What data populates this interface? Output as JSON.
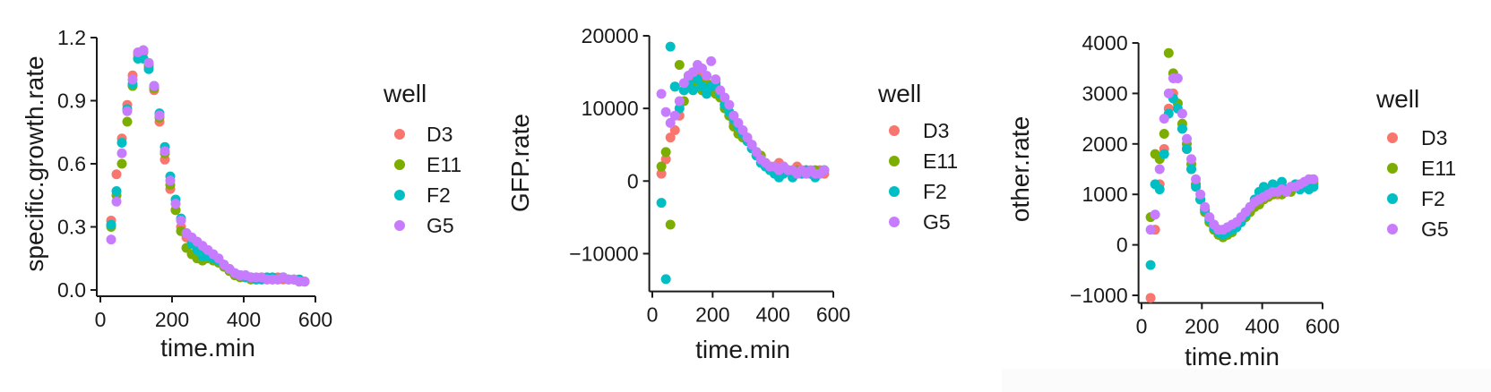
{
  "legend": {
    "title": "well",
    "entries": [
      {
        "label": "D3",
        "color": "#F8766D"
      },
      {
        "label": "E11",
        "color": "#7CAE00"
      },
      {
        "label": "F2",
        "color": "#00BFC4"
      },
      {
        "label": "G5",
        "color": "#C77CFF"
      }
    ]
  },
  "chart_data": [
    {
      "type": "scatter",
      "xlabel": "time.min",
      "ylabel": "specific.growth.rate",
      "xlim": [
        0,
        600
      ],
      "ylim": [
        0.0,
        1.2
      ],
      "xticks": [
        0,
        200,
        400,
        600
      ],
      "xtick_labels": [
        "0",
        "200",
        "400",
        "600"
      ],
      "yticks": [
        0.0,
        0.3,
        0.6,
        0.9,
        1.2
      ],
      "ytick_labels": [
        "0.0",
        "0.3",
        "0.6",
        "0.9",
        "1.2"
      ],
      "grid": false,
      "legend_position": "right",
      "series": [
        {
          "name": "D3",
          "x": [
            30,
            45,
            60,
            75,
            90,
            105,
            120,
            135,
            150,
            165,
            180,
            195,
            210,
            225,
            240,
            255,
            270,
            285,
            300,
            315,
            330,
            345,
            360,
            375,
            390,
            405,
            420,
            435,
            450,
            465,
            480,
            495,
            510,
            525,
            540,
            555,
            570
          ],
          "y": [
            0.33,
            0.55,
            0.72,
            0.88,
            1.02,
            1.12,
            1.13,
            1.06,
            0.95,
            0.8,
            0.62,
            0.48,
            0.38,
            0.3,
            0.25,
            0.22,
            0.2,
            0.18,
            0.17,
            0.15,
            0.14,
            0.12,
            0.1,
            0.08,
            0.07,
            0.06,
            0.06,
            0.05,
            0.06,
            0.05,
            0.05,
            0.06,
            0.05,
            0.05,
            0.05,
            0.04,
            0.04
          ]
        },
        {
          "name": "E11",
          "x": [
            30,
            45,
            60,
            75,
            90,
            105,
            120,
            135,
            150,
            165,
            180,
            195,
            210,
            225,
            240,
            255,
            270,
            285,
            300,
            315,
            330,
            345,
            360,
            375,
            390,
            405,
            420,
            435,
            450,
            465,
            480,
            495,
            510,
            525,
            540,
            555,
            570
          ],
          "y": [
            0.3,
            0.45,
            0.6,
            0.8,
            0.97,
            1.1,
            1.14,
            1.07,
            0.96,
            0.82,
            0.65,
            0.5,
            0.38,
            0.28,
            0.2,
            0.17,
            0.15,
            0.14,
            0.15,
            0.14,
            0.13,
            0.11,
            0.09,
            0.07,
            0.06,
            0.06,
            0.05,
            0.05,
            0.05,
            0.05,
            0.05,
            0.05,
            0.06,
            0.05,
            0.05,
            0.04,
            0.04
          ]
        },
        {
          "name": "F2",
          "x": [
            30,
            45,
            60,
            75,
            90,
            105,
            120,
            135,
            150,
            165,
            180,
            195,
            210,
            225,
            240,
            255,
            270,
            285,
            300,
            315,
            330,
            345,
            360,
            375,
            390,
            405,
            420,
            435,
            450,
            465,
            480,
            495,
            510,
            525,
            540,
            555,
            570
          ],
          "y": [
            0.31,
            0.47,
            0.7,
            0.86,
            0.98,
            1.1,
            1.1,
            1.05,
            0.97,
            0.84,
            0.68,
            0.54,
            0.43,
            0.34,
            0.27,
            0.22,
            0.19,
            0.16,
            0.16,
            0.15,
            0.14,
            0.12,
            0.1,
            0.08,
            0.07,
            0.06,
            0.06,
            0.05,
            0.05,
            0.06,
            0.06,
            0.05,
            0.06,
            0.05,
            0.05,
            0.05,
            0.04
          ]
        },
        {
          "name": "G5",
          "x": [
            30,
            45,
            60,
            75,
            90,
            105,
            120,
            135,
            150,
            165,
            180,
            195,
            210,
            225,
            240,
            255,
            270,
            285,
            300,
            315,
            330,
            345,
            360,
            375,
            390,
            405,
            420,
            435,
            450,
            465,
            480,
            495,
            510,
            525,
            540,
            555,
            570
          ],
          "y": [
            0.24,
            0.42,
            0.65,
            0.85,
            1.0,
            1.13,
            1.14,
            1.08,
            0.97,
            0.83,
            0.66,
            0.52,
            0.41,
            0.33,
            0.27,
            0.25,
            0.23,
            0.21,
            0.19,
            0.17,
            0.15,
            0.12,
            0.1,
            0.08,
            0.07,
            0.07,
            0.06,
            0.06,
            0.06,
            0.05,
            0.05,
            0.05,
            0.06,
            0.05,
            0.05,
            0.04,
            0.04
          ]
        }
      ]
    },
    {
      "type": "scatter",
      "xlabel": "time.min",
      "ylabel": "GFP.rate",
      "xlim": [
        0,
        600
      ],
      "ylim": [
        -15000,
        20000
      ],
      "xticks": [
        0,
        200,
        400,
        600
      ],
      "xtick_labels": [
        "0",
        "200",
        "400",
        "600"
      ],
      "yticks": [
        -10000,
        0,
        10000,
        20000
      ],
      "ytick_labels": [
        "−10000",
        "0",
        "10000",
        "20000"
      ],
      "grid": false,
      "legend_position": "right",
      "series": [
        {
          "name": "D3",
          "x": [
            30,
            45,
            60,
            75,
            90,
            105,
            120,
            135,
            150,
            165,
            180,
            195,
            210,
            225,
            240,
            255,
            270,
            285,
            300,
            315,
            330,
            345,
            360,
            375,
            390,
            405,
            420,
            435,
            450,
            465,
            480,
            495,
            510,
            525,
            540,
            555,
            570
          ],
          "y": [
            1000,
            3000,
            6000,
            7000,
            9000,
            12500,
            14000,
            13500,
            14500,
            14000,
            13000,
            12500,
            13000,
            12000,
            10500,
            9000,
            8000,
            7000,
            6500,
            5500,
            5000,
            4000,
            3000,
            2500,
            2000,
            2000,
            2500,
            2000,
            1500,
            1500,
            2000,
            1500,
            1000,
            1000,
            1000,
            1500,
            1000
          ]
        },
        {
          "name": "E11",
          "x": [
            30,
            45,
            60,
            75,
            90,
            105,
            120,
            135,
            150,
            165,
            180,
            195,
            210,
            225,
            240,
            255,
            270,
            285,
            300,
            315,
            330,
            345,
            360,
            375,
            390,
            405,
            420,
            435,
            450,
            465,
            480,
            495,
            510,
            525,
            540,
            555,
            570
          ],
          "y": [
            2000,
            4000,
            -6000,
            13000,
            16000,
            11000,
            14500,
            13000,
            13500,
            12500,
            13500,
            12500,
            12000,
            11500,
            10000,
            9000,
            7500,
            6500,
            6000,
            5500,
            4500,
            4000,
            3500,
            2500,
            2000,
            1500,
            1000,
            1500,
            1500,
            1000,
            1500,
            1000,
            1500,
            1000,
            1500,
            1000,
            1500
          ]
        },
        {
          "name": "F2",
          "x": [
            30,
            45,
            60,
            75,
            90,
            105,
            120,
            135,
            150,
            165,
            180,
            195,
            210,
            225,
            240,
            255,
            270,
            285,
            300,
            315,
            330,
            345,
            360,
            375,
            390,
            405,
            420,
            435,
            450,
            465,
            480,
            495,
            510,
            525,
            540,
            555,
            570
          ],
          "y": [
            -3000,
            -13500,
            18500,
            13000,
            10000,
            12500,
            13500,
            12500,
            14000,
            13000,
            12000,
            13000,
            13500,
            12000,
            10500,
            9500,
            8500,
            7500,
            6500,
            5500,
            4500,
            3500,
            2500,
            2000,
            1500,
            1000,
            500,
            1000,
            1500,
            500,
            1000,
            1000,
            1500,
            1000,
            500,
            1000,
            1500
          ]
        },
        {
          "name": "G5",
          "x": [
            30,
            45,
            60,
            75,
            90,
            105,
            120,
            135,
            150,
            165,
            180,
            195,
            210,
            225,
            240,
            255,
            270,
            285,
            300,
            315,
            330,
            345,
            360,
            375,
            390,
            405,
            420,
            435,
            450,
            465,
            480,
            495,
            510,
            525,
            540,
            555,
            570
          ],
          "y": [
            12000,
            9500,
            8000,
            9000,
            11000,
            13500,
            14500,
            15000,
            16000,
            15500,
            14500,
            16500,
            14000,
            12500,
            11500,
            10500,
            9000,
            8000,
            7000,
            6000,
            5000,
            4000,
            3000,
            2500,
            2000,
            2000,
            1500,
            2000,
            1500,
            1500,
            1000,
            1500,
            1000,
            1500,
            1000,
            1000,
            1500
          ]
        }
      ]
    },
    {
      "type": "scatter",
      "xlabel": "time.min",
      "ylabel": "other.rate",
      "xlim": [
        0,
        600
      ],
      "ylim": [
        -1000,
        4000
      ],
      "xticks": [
        0,
        200,
        400,
        600
      ],
      "xtick_labels": [
        "0",
        "200",
        "400",
        "600"
      ],
      "yticks": [
        -1000,
        0,
        1000,
        2000,
        3000,
        4000
      ],
      "ytick_labels": [
        "−1000",
        "0",
        "1000",
        "2000",
        "3000",
        "4000"
      ],
      "grid": false,
      "legend_position": "right",
      "series": [
        {
          "name": "D3",
          "x": [
            30,
            45,
            60,
            75,
            90,
            105,
            120,
            135,
            150,
            165,
            180,
            195,
            210,
            225,
            240,
            255,
            270,
            285,
            300,
            315,
            330,
            345,
            360,
            375,
            390,
            405,
            420,
            435,
            450,
            465,
            480,
            495,
            510,
            525,
            540,
            555,
            570
          ],
          "y": [
            -1050,
            300,
            1200,
            1900,
            2700,
            3000,
            2800,
            2300,
            1900,
            1500,
            1200,
            900,
            700,
            550,
            400,
            300,
            250,
            300,
            350,
            400,
            500,
            600,
            700,
            800,
            850,
            900,
            950,
            1000,
            1000,
            1050,
            1100,
            1100,
            1150,
            1150,
            1200,
            1200,
            1250
          ]
        },
        {
          "name": "E11",
          "x": [
            30,
            45,
            60,
            75,
            90,
            105,
            120,
            135,
            150,
            165,
            180,
            195,
            210,
            225,
            240,
            255,
            270,
            285,
            300,
            315,
            330,
            345,
            360,
            375,
            390,
            405,
            420,
            435,
            450,
            465,
            480,
            495,
            510,
            525,
            540,
            555,
            570
          ],
          "y": [
            550,
            1800,
            1700,
            2200,
            3800,
            3400,
            2800,
            2400,
            2000,
            1600,
            1200,
            900,
            650,
            450,
            300,
            200,
            150,
            200,
            250,
            350,
            450,
            550,
            650,
            750,
            800,
            900,
            950,
            1000,
            1050,
            1000,
            1100,
            1050,
            1150,
            1100,
            1150,
            1200,
            1200
          ]
        },
        {
          "name": "F2",
          "x": [
            30,
            45,
            60,
            75,
            90,
            105,
            120,
            135,
            150,
            165,
            180,
            195,
            210,
            225,
            240,
            255,
            270,
            285,
            300,
            315,
            330,
            345,
            360,
            375,
            390,
            405,
            420,
            435,
            450,
            465,
            480,
            495,
            510,
            525,
            540,
            555,
            570
          ],
          "y": [
            -400,
            1200,
            1100,
            1800,
            2600,
            2900,
            2700,
            2300,
            1900,
            1500,
            1150,
            900,
            700,
            500,
            350,
            250,
            200,
            250,
            300,
            350,
            450,
            600,
            750,
            900,
            1050,
            1150,
            1100,
            1200,
            1150,
            1250,
            1100,
            1150,
            1200,
            1100,
            1150,
            1100,
            1150
          ]
        },
        {
          "name": "G5",
          "x": [
            30,
            45,
            60,
            75,
            90,
            105,
            120,
            135,
            150,
            165,
            180,
            195,
            210,
            225,
            240,
            255,
            270,
            285,
            300,
            315,
            330,
            345,
            360,
            375,
            390,
            405,
            420,
            435,
            450,
            465,
            480,
            495,
            510,
            525,
            540,
            555,
            570
          ],
          "y": [
            300,
            600,
            1500,
            2500,
            3000,
            3300,
            3300,
            2600,
            2100,
            1700,
            1300,
            1000,
            750,
            550,
            400,
            300,
            300,
            350,
            400,
            450,
            550,
            650,
            750,
            850,
            900,
            950,
            1000,
            1050,
            1050,
            1100,
            1050,
            1150,
            1150,
            1200,
            1250,
            1300,
            1300
          ]
        }
      ]
    }
  ]
}
